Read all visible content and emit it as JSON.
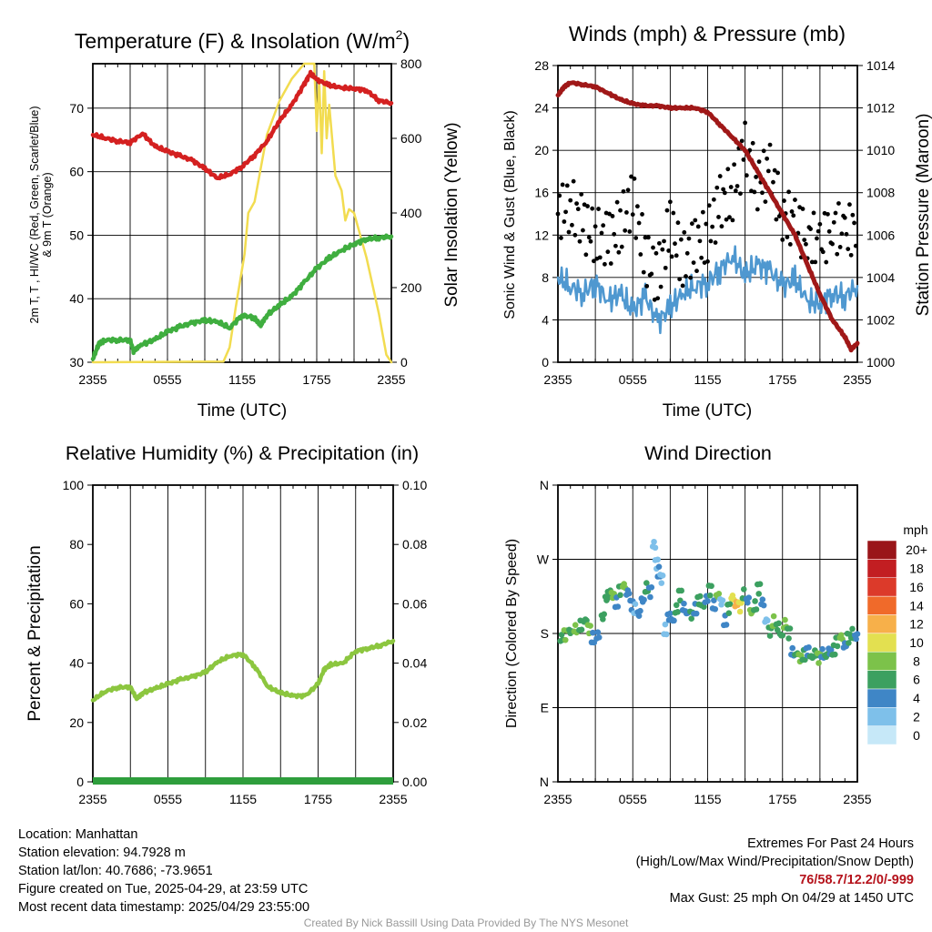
{
  "colors": {
    "temp": "#d42020",
    "dewpoint": "#3fae3f",
    "solar": "#f2dc50",
    "wind": "#4f98d0",
    "gust": "#000000",
    "pressure": "#a01818",
    "rh": "#8cc63f",
    "precip": "#2e9e3c"
  },
  "time_ticks": [
    "2355",
    "0555",
    "1155",
    "1755",
    "2355"
  ],
  "panels": {
    "temp": {
      "title": "Temperature (F) & Insolation (W/m",
      "title_sup": "2",
      "title_end": ")",
      "ylabel_left_line1": "2m T, T , HI/WC (Red, Green, Scarlet/Blue)",
      "ylabel_left_line2": "& 9m T (Orange)",
      "ylabel_right": "Solar Insolation (Yellow)",
      "xlabel": "Time (UTC)",
      "yticks_left": [
        "30",
        "40",
        "50",
        "60",
        "70"
      ],
      "yticks_right": [
        "0",
        "200",
        "400",
        "600",
        "800"
      ]
    },
    "wind": {
      "title": "Winds (mph) & Pressure (mb)",
      "ylabel_left": "Sonic Wind & Gust (Blue, Black)",
      "ylabel_right": "Station Pressure (Maroon)",
      "xlabel": "Time (UTC)",
      "yticks_left": [
        "0",
        "4",
        "8",
        "12",
        "16",
        "20",
        "24",
        "28"
      ],
      "yticks_right": [
        "1000",
        "1002",
        "1004",
        "1006",
        "1008",
        "1010",
        "1012",
        "1014"
      ]
    },
    "rh": {
      "title": "Relative Humidity (%) & Precipitation (in)",
      "ylabel_left": "Percent & Precipitation",
      "yticks_left": [
        "0",
        "20",
        "40",
        "60",
        "80",
        "100"
      ],
      "yticks_right": [
        "0.00",
        "0.02",
        "0.04",
        "0.06",
        "0.08",
        "0.10"
      ]
    },
    "dir": {
      "title": "Wind Direction",
      "ylabel_left": "Direction (Colored By Speed)",
      "yticks_left": [
        "N",
        "E",
        "S",
        "W",
        "N"
      ],
      "colorbar_unit": "mph",
      "colorbar_labels": [
        "0",
        "2",
        "4",
        "6",
        "8",
        "10",
        "12",
        "14",
        "16",
        "18",
        "20+"
      ],
      "colorbar_colors": [
        "#c6e8f8",
        "#7ec0ea",
        "#3f86c6",
        "#3ca060",
        "#7cc24a",
        "#e3e050",
        "#f7b04a",
        "#f06a2a",
        "#dc3a2a",
        "#c21e22",
        "#9a1519"
      ]
    }
  },
  "chart_data": [
    {
      "type": "line",
      "title": "Temperature (F) & Insolation (W/m2)",
      "xlabel": "Time (UTC)",
      "xlim": [
        0,
        24
      ],
      "ylim": [
        30,
        77
      ],
      "y2lim": [
        0,
        800
      ],
      "series": [
        {
          "name": "2m T",
          "axis": "left",
          "x": [
            0,
            1,
            2,
            3,
            4,
            5,
            6,
            7,
            8,
            9,
            10,
            11,
            12,
            13,
            14,
            15,
            16,
            17,
            17.5,
            18,
            19,
            20,
            21,
            22,
            23,
            24
          ],
          "y": [
            65.8,
            65.3,
            64.8,
            64.6,
            66.0,
            64.0,
            63.2,
            62.5,
            61.8,
            60.5,
            59.0,
            59.6,
            60.8,
            62.6,
            64.8,
            68.0,
            70.5,
            73.8,
            75.5,
            74.5,
            73.6,
            73.2,
            73.1,
            72.8,
            71.2,
            70.8
          ]
        },
        {
          "name": "T dewpoint",
          "axis": "left",
          "x": [
            0,
            0.5,
            1,
            2,
            3,
            3.3,
            4,
            5,
            6,
            7,
            8,
            9,
            10,
            11,
            12,
            13,
            13.5,
            14,
            15,
            16,
            17,
            18,
            19,
            20,
            21,
            22,
            23,
            24
          ],
          "y": [
            30.5,
            33.0,
            33.5,
            33.5,
            33.5,
            31.6,
            32.8,
            33.6,
            34.8,
            35.6,
            36.2,
            36.6,
            36.4,
            35.4,
            37.4,
            37.0,
            35.8,
            37.4,
            39.0,
            40.4,
            42.6,
            44.8,
            46.4,
            47.6,
            48.6,
            49.4,
            49.6,
            49.8
          ]
        },
        {
          "name": "Solar Insolation",
          "axis": "right",
          "x": [
            0,
            10.5,
            11,
            11.5,
            12,
            12.2,
            12.5,
            13,
            14,
            15,
            16,
            16.5,
            17,
            17.5,
            17.8,
            18,
            18.2,
            18.4,
            18.6,
            18.8,
            19,
            19.5,
            20,
            20.3,
            20.6,
            21,
            22,
            23,
            23.6,
            24
          ],
          "y": [
            0,
            2,
            40,
            150,
            250,
            290,
            400,
            430,
            610,
            700,
            760,
            780,
            800,
            815,
            800,
            620,
            760,
            560,
            780,
            600,
            690,
            500,
            460,
            380,
            410,
            400,
            280,
            130,
            20,
            0
          ]
        }
      ]
    },
    {
      "type": "line",
      "title": "Winds (mph) & Pressure (mb)",
      "xlabel": "Time (UTC)",
      "xlim": [
        0,
        24
      ],
      "ylim": [
        0,
        28
      ],
      "y2lim": [
        1000,
        1014
      ],
      "series": [
        {
          "name": "Sonic Wind",
          "axis": "left",
          "x": [
            0,
            1,
            2,
            3,
            4,
            5,
            6,
            7,
            8,
            9,
            10,
            11,
            12,
            13,
            14,
            15,
            16,
            17,
            18,
            19,
            20,
            21,
            22,
            23,
            24
          ],
          "y": [
            8,
            7.2,
            6.5,
            7.5,
            5.8,
            6.5,
            4.8,
            6.2,
            3.8,
            5.2,
            6.5,
            7.2,
            7.5,
            8.8,
            10,
            8.2,
            9.2,
            8.6,
            7.2,
            7.8,
            5.8,
            5.5,
            6.5,
            6.2,
            7.2
          ]
        },
        {
          "name": "Gust",
          "axis": "left",
          "x": [
            0,
            1,
            2,
            3,
            4,
            5,
            6,
            7,
            8,
            9,
            10,
            11,
            12,
            13,
            14,
            15,
            16,
            17,
            18,
            19,
            20,
            21,
            22,
            23,
            24
          ],
          "y": [
            14,
            15,
            13,
            12,
            11.5,
            13,
            15.5,
            10,
            8,
            13,
            9.5,
            11,
            12,
            15,
            16,
            20,
            17,
            18,
            14,
            13,
            12,
            11,
            13,
            12,
            13
          ]
        },
        {
          "name": "Station Pressure",
          "axis": "right",
          "x": [
            0,
            0.5,
            1,
            2,
            3,
            4,
            5,
            6,
            7,
            8,
            9,
            10,
            11,
            12,
            13,
            14,
            15,
            16,
            17,
            18,
            19,
            20,
            21,
            22,
            23,
            23.5,
            24
          ],
          "y": [
            1012.6,
            1013.0,
            1013.2,
            1013.1,
            1013.0,
            1012.7,
            1012.4,
            1012.2,
            1012.1,
            1012.1,
            1012.0,
            1012.0,
            1012.0,
            1011.8,
            1011.2,
            1010.6,
            1010.0,
            1009.0,
            1008.0,
            1007.0,
            1006.0,
            1004.6,
            1003.2,
            1002.0,
            1001.2,
            1000.6,
            1000.9
          ]
        }
      ]
    },
    {
      "type": "line",
      "title": "Relative Humidity (%) & Precipitation (in)",
      "xlim": [
        0,
        24
      ],
      "ylim": [
        0,
        100
      ],
      "y2lim": [
        0,
        0.1
      ],
      "series": [
        {
          "name": "Relative Humidity",
          "axis": "left",
          "x": [
            0,
            1,
            2,
            3,
            3.5,
            4,
            5,
            6,
            7,
            8,
            9,
            10,
            11,
            12,
            13,
            14,
            15,
            16,
            17,
            18,
            18.5,
            19,
            20,
            21,
            22,
            23,
            24
          ],
          "y": [
            27.5,
            30.5,
            31.8,
            32.0,
            28.0,
            30.0,
            31.5,
            33.0,
            34.5,
            35.5,
            37.0,
            40.5,
            42.5,
            43.0,
            38.5,
            32.0,
            30.0,
            29.0,
            29.0,
            33.0,
            38.0,
            39.5,
            40.0,
            44.0,
            45.0,
            46.0,
            47.5
          ]
        },
        {
          "name": "Precipitation",
          "axis": "right",
          "x": [
            0,
            24
          ],
          "y": [
            0,
            0
          ]
        }
      ]
    },
    {
      "type": "scatter",
      "title": "Wind Direction",
      "xlim": [
        0,
        24
      ],
      "ylim": [
        0,
        360
      ],
      "y_categories": [
        "N",
        "E",
        "S",
        "W",
        "N"
      ],
      "colorbar": {
        "unit": "mph",
        "levels": [
          0,
          2,
          4,
          6,
          8,
          10,
          12,
          14,
          16,
          18,
          20
        ]
      },
      "points": [
        {
          "x": 0.3,
          "y": 175,
          "s": 7
        },
        {
          "x": 0.6,
          "y": 178,
          "s": 8
        },
        {
          "x": 1.0,
          "y": 182,
          "s": 6
        },
        {
          "x": 1.4,
          "y": 186,
          "s": 9
        },
        {
          "x": 1.8,
          "y": 190,
          "s": 7
        },
        {
          "x": 2.2,
          "y": 196,
          "s": 6
        },
        {
          "x": 2.5,
          "y": 185,
          "s": 8
        },
        {
          "x": 2.8,
          "y": 175,
          "s": 5
        },
        {
          "x": 3.2,
          "y": 178,
          "s": 4
        },
        {
          "x": 3.6,
          "y": 200,
          "s": 6
        },
        {
          "x": 3.9,
          "y": 222,
          "s": 7
        },
        {
          "x": 4.1,
          "y": 230,
          "s": 6
        },
        {
          "x": 4.4,
          "y": 226,
          "s": 8
        },
        {
          "x": 4.7,
          "y": 218,
          "s": 5
        },
        {
          "x": 5.0,
          "y": 232,
          "s": 6
        },
        {
          "x": 5.3,
          "y": 238,
          "s": 8
        },
        {
          "x": 5.6,
          "y": 230,
          "s": 4
        },
        {
          "x": 5.9,
          "y": 214,
          "s": 4
        },
        {
          "x": 6.2,
          "y": 210,
          "s": 3
        },
        {
          "x": 6.5,
          "y": 204,
          "s": 4
        },
        {
          "x": 6.8,
          "y": 220,
          "s": 5
        },
        {
          "x": 7.1,
          "y": 236,
          "s": 6
        },
        {
          "x": 7.4,
          "y": 230,
          "s": 4
        },
        {
          "x": 7.7,
          "y": 288,
          "s": 2
        },
        {
          "x": 7.9,
          "y": 264,
          "s": 3
        },
        {
          "x": 8.1,
          "y": 255,
          "s": 4
        },
        {
          "x": 8.3,
          "y": 246,
          "s": 3
        },
        {
          "x": 8.6,
          "y": 185,
          "s": 3
        },
        {
          "x": 8.9,
          "y": 200,
          "s": 4
        },
        {
          "x": 9.2,
          "y": 196,
          "s": 5
        },
        {
          "x": 9.5,
          "y": 210,
          "s": 7
        },
        {
          "x": 9.8,
          "y": 226,
          "s": 6
        },
        {
          "x": 10.1,
          "y": 212,
          "s": 5
        },
        {
          "x": 10.4,
          "y": 205,
          "s": 4
        },
        {
          "x": 10.7,
          "y": 202,
          "s": 6
        },
        {
          "x": 11.0,
          "y": 210,
          "s": 5
        },
        {
          "x": 11.3,
          "y": 220,
          "s": 6
        },
        {
          "x": 11.6,
          "y": 214,
          "s": 7
        },
        {
          "x": 11.9,
          "y": 222,
          "s": 4
        },
        {
          "x": 12.2,
          "y": 232,
          "s": 6
        },
        {
          "x": 12.5,
          "y": 215,
          "s": 5
        },
        {
          "x": 12.8,
          "y": 226,
          "s": 8
        },
        {
          "x": 13.1,
          "y": 218,
          "s": 3
        },
        {
          "x": 13.4,
          "y": 196,
          "s": 4
        },
        {
          "x": 13.7,
          "y": 210,
          "s": 6
        },
        {
          "x": 14.0,
          "y": 224,
          "s": 10
        },
        {
          "x": 14.3,
          "y": 216,
          "s": 12
        },
        {
          "x": 14.6,
          "y": 212,
          "s": 11
        },
        {
          "x": 14.9,
          "y": 228,
          "s": 7
        },
        {
          "x": 15.2,
          "y": 220,
          "s": 5
        },
        {
          "x": 15.5,
          "y": 206,
          "s": 8
        },
        {
          "x": 15.8,
          "y": 214,
          "s": 6
        },
        {
          "x": 16.1,
          "y": 234,
          "s": 6
        },
        {
          "x": 16.4,
          "y": 218,
          "s": 4
        },
        {
          "x": 16.7,
          "y": 196,
          "s": 3
        },
        {
          "x": 17.0,
          "y": 182,
          "s": 6
        },
        {
          "x": 17.3,
          "y": 195,
          "s": 8
        },
        {
          "x": 17.6,
          "y": 188,
          "s": 7
        },
        {
          "x": 17.9,
          "y": 178,
          "s": 6
        },
        {
          "x": 18.2,
          "y": 192,
          "s": 8
        },
        {
          "x": 18.5,
          "y": 180,
          "s": 6
        },
        {
          "x": 18.8,
          "y": 158,
          "s": 5
        },
        {
          "x": 19.1,
          "y": 155,
          "s": 6
        },
        {
          "x": 19.4,
          "y": 150,
          "s": 8
        },
        {
          "x": 19.7,
          "y": 154,
          "s": 7
        },
        {
          "x": 20.0,
          "y": 158,
          "s": 5
        },
        {
          "x": 20.3,
          "y": 152,
          "s": 6
        },
        {
          "x": 20.6,
          "y": 156,
          "s": 7
        },
        {
          "x": 20.9,
          "y": 150,
          "s": 8
        },
        {
          "x": 21.2,
          "y": 156,
          "s": 5
        },
        {
          "x": 21.5,
          "y": 153,
          "s": 6
        },
        {
          "x": 21.8,
          "y": 158,
          "s": 4
        },
        {
          "x": 22.1,
          "y": 160,
          "s": 7
        },
        {
          "x": 22.4,
          "y": 170,
          "s": 6
        },
        {
          "x": 22.7,
          "y": 176,
          "s": 8
        },
        {
          "x": 23.0,
          "y": 166,
          "s": 5
        },
        {
          "x": 23.3,
          "y": 174,
          "s": 6
        },
        {
          "x": 23.6,
          "y": 180,
          "s": 7
        },
        {
          "x": 23.9,
          "y": 176,
          "s": 5
        }
      ]
    }
  ],
  "info": {
    "location": "Location: Manhattan",
    "elevation": "Station elevation: 94.7928 m",
    "latlon": "Station lat/lon: 40.7686; -73.9651",
    "created": "Figure created on Tue, 2025-04-29, at 23:59 UTC",
    "recent": "Most recent data timestamp: 2025/04/29 23:55:00"
  },
  "extremes": {
    "title": "Extremes For Past 24 Hours",
    "subtitle": "(High/Low/Max Wind/Precipitation/Snow Depth)",
    "values": "76/58.7/12.2/0/-999",
    "gust": "Max Gust: 25 mph On 04/29 at 1450 UTC"
  },
  "credit": "Created By Nick Bassill Using Data Provided By The NYS Mesonet"
}
